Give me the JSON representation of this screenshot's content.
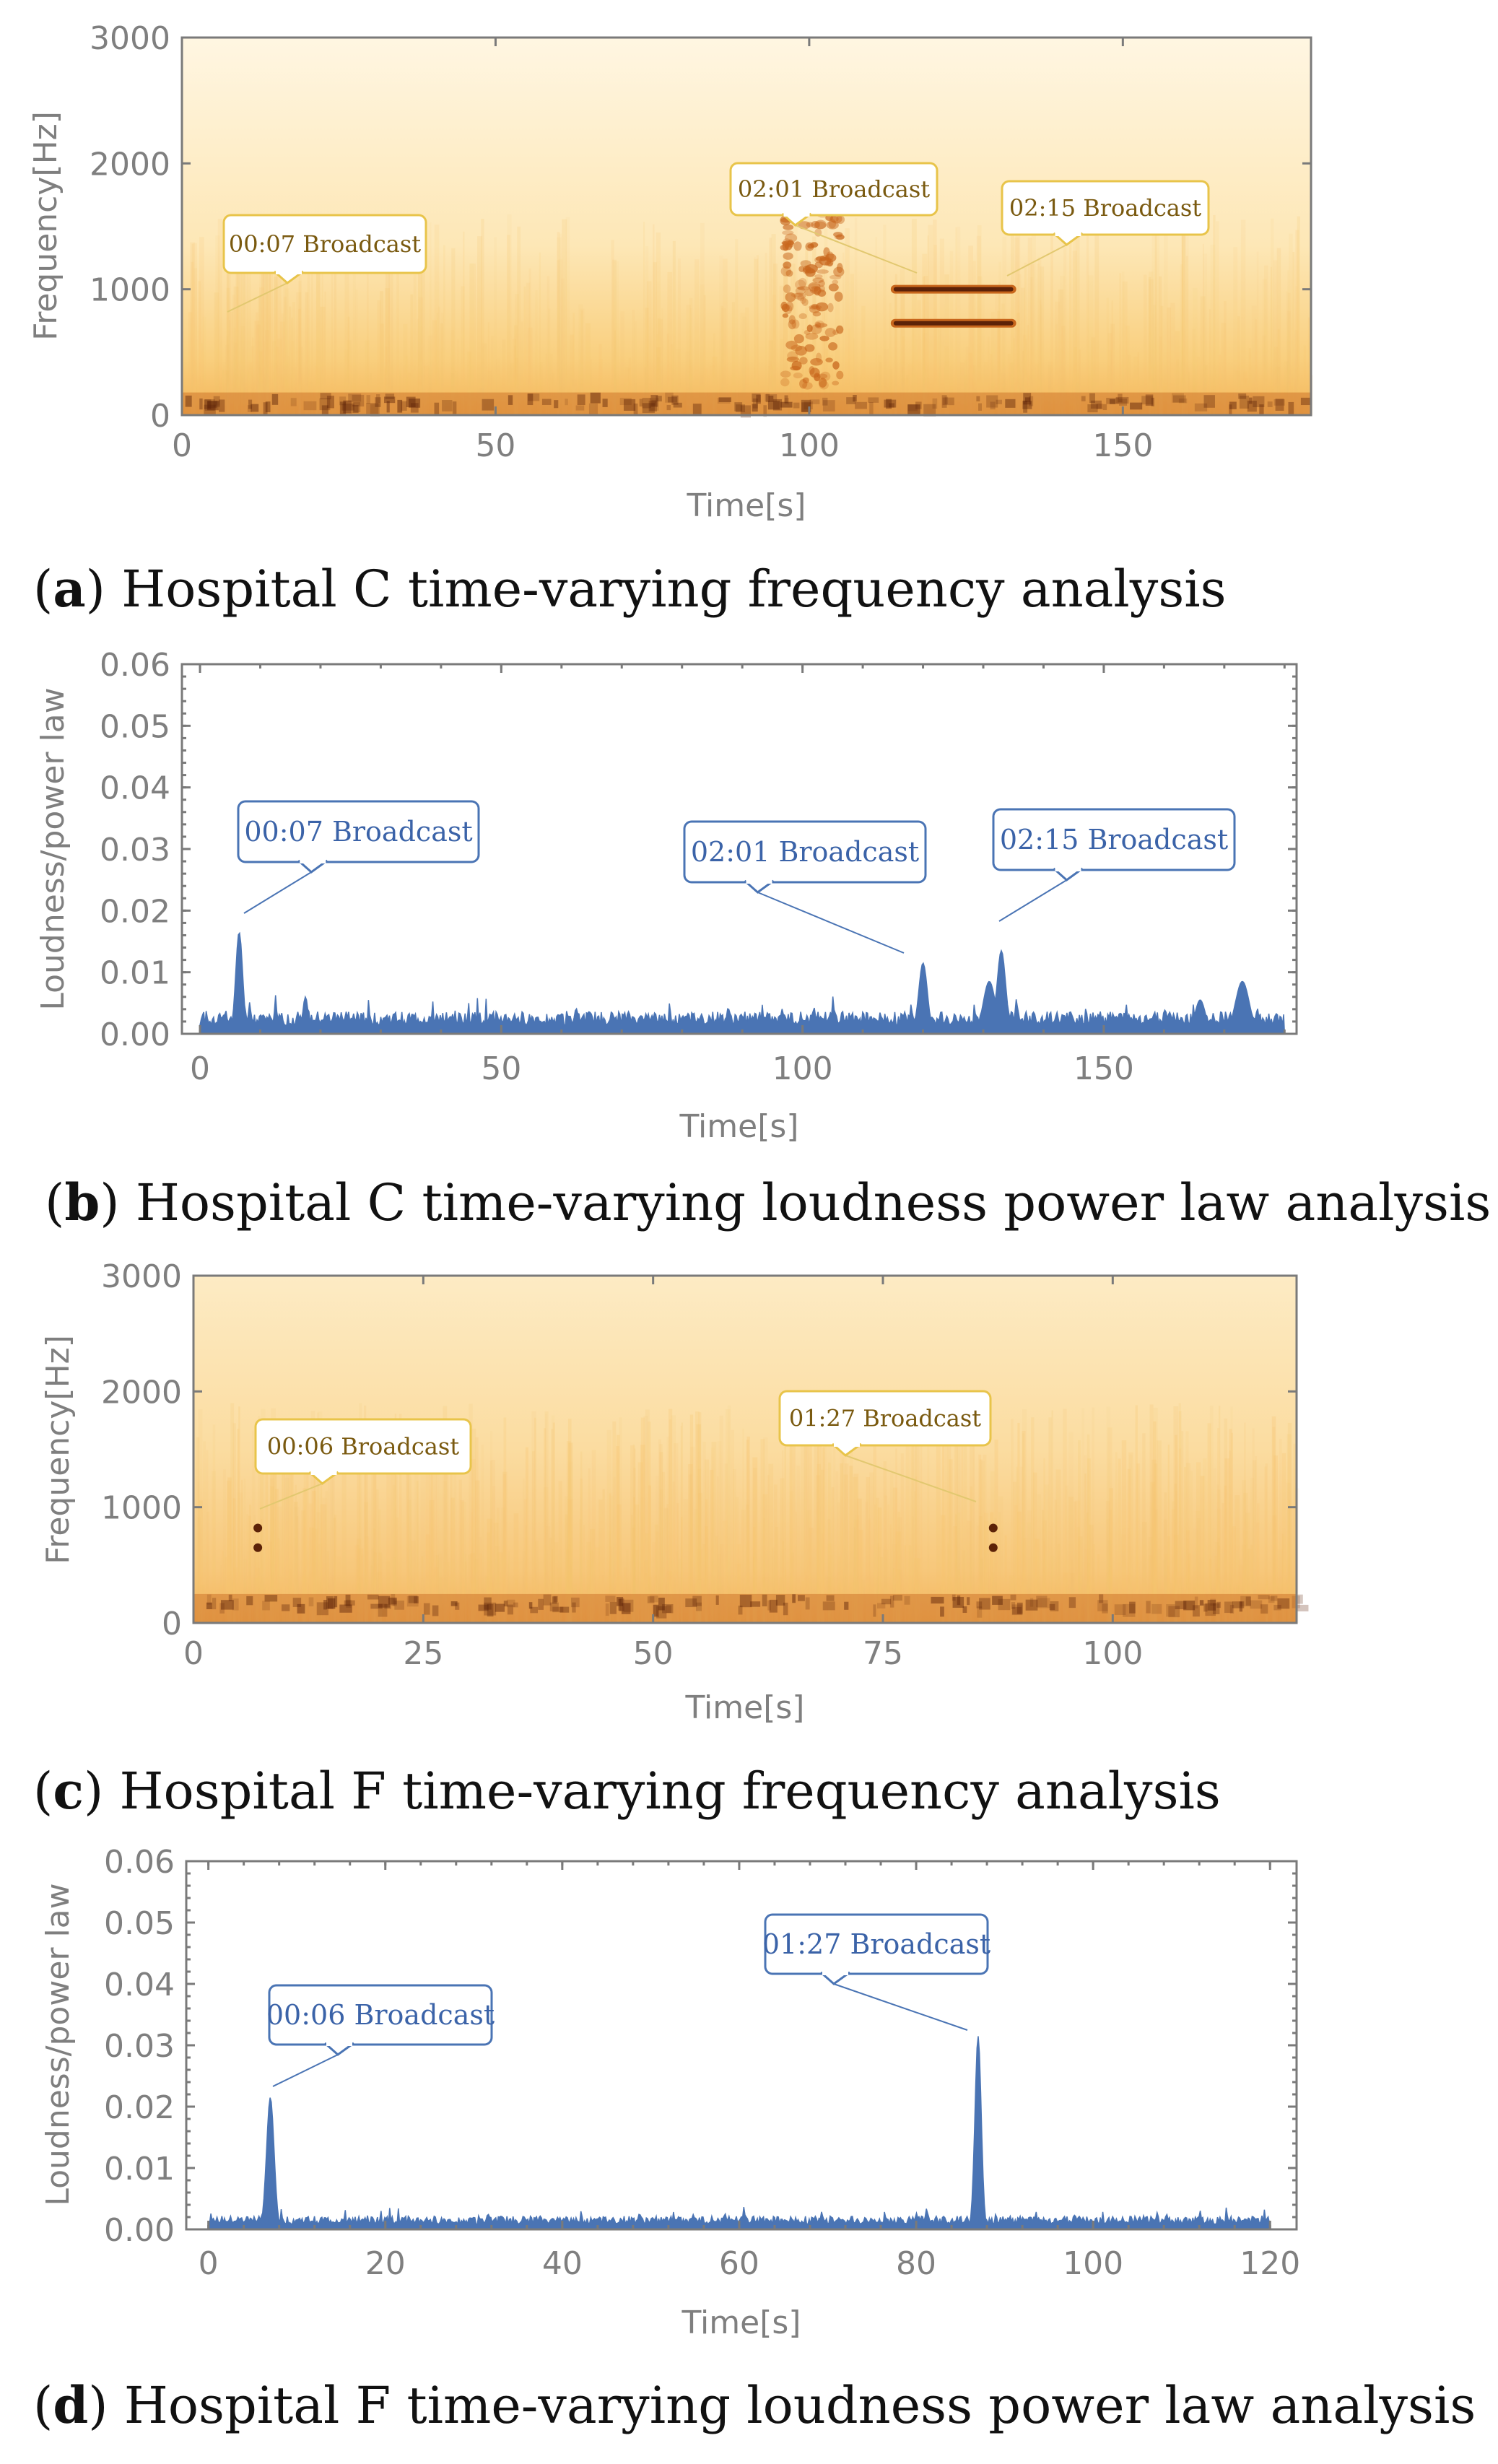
{
  "colors": {
    "series": "#4a74b4",
    "callout_gold_border": "#e8c44a",
    "callout_gold_leader": "#e2c870",
    "callout_blue_border": "#4a74b4",
    "spectrogram_low": "#fff5dc",
    "spectrogram_mid": "#f6c46e",
    "spectrogram_high": "#c8661c",
    "spectrogram_peak": "#5c2208"
  },
  "chart_data": [
    {
      "id": "a",
      "type": "heatmap",
      "caption_letter": "a",
      "caption_text": " Hospital C time-varying frequency analysis",
      "xlabel": "Time[s]",
      "ylabel": "Frequency[Hz]",
      "xlim": [
        0,
        180
      ],
      "ylim": [
        0,
        3000
      ],
      "xticks": [
        0,
        50,
        100,
        150
      ],
      "xtick_labels": [
        "0",
        "50",
        "100",
        "150"
      ],
      "yticks": [
        0,
        1000,
        2000,
        3000
      ],
      "ytick_labels": [
        "0",
        "1000",
        "2000",
        "3000"
      ],
      "features": [
        {
          "kind": "band",
          "t0": 0,
          "t1": 180,
          "f0": 0,
          "f1": 180,
          "intensity": 0.9
        },
        {
          "kind": "tonal",
          "t0": 113,
          "t1": 133,
          "f": 1000,
          "intensity": 1.0
        },
        {
          "kind": "tonal",
          "t0": 113,
          "t1": 133,
          "f": 730,
          "intensity": 1.0
        },
        {
          "kind": "burst",
          "t0": 96,
          "t1": 105,
          "f0": 200,
          "f1": 1600,
          "intensity": 0.7
        }
      ],
      "annotations": [
        {
          "label": "00:07 Broadcast",
          "t": 7,
          "value": 800
        },
        {
          "label": "02:01 Broadcast",
          "t": 118,
          "value": 1100
        },
        {
          "label": "02:15 Broadcast",
          "t": 131,
          "value": 1100
        }
      ]
    },
    {
      "id": "b",
      "type": "area",
      "caption_letter": "b",
      "caption_text": " Hospital C time-varying loudness power law analysis",
      "xlabel": "Time[s]",
      "ylabel": "Loudness/power law",
      "xlim": [
        -3,
        182
      ],
      "ylim": [
        0,
        0.06
      ],
      "xticks": [
        0,
        50,
        100,
        150
      ],
      "xtick_labels": [
        "0",
        "50",
        "100",
        "150"
      ],
      "yticks": [
        0,
        0.01,
        0.02,
        0.03,
        0.04,
        0.05,
        0.06
      ],
      "ytick_labels": [
        "0.00",
        "0.01",
        "0.02",
        "0.03",
        "0.04",
        "0.05",
        "0.06"
      ],
      "baseline_start": 0,
      "baseline_end": 180,
      "baseline_level": 0.0025,
      "peaks": [
        {
          "t": 6.5,
          "value": 0.0165,
          "width": 0.8
        },
        {
          "t": 17.5,
          "value": 0.006,
          "width": 0.6
        },
        {
          "t": 120,
          "value": 0.0115,
          "width": 1.0
        },
        {
          "t": 131,
          "value": 0.0085,
          "width": 1.4
        },
        {
          "t": 133,
          "value": 0.0135,
          "width": 1.0
        },
        {
          "t": 166,
          "value": 0.0055,
          "width": 1.2
        },
        {
          "t": 173,
          "value": 0.0085,
          "width": 1.6
        }
      ],
      "annotations": [
        {
          "label": "00:07 Broadcast",
          "t": 7,
          "value": 0.017
        },
        {
          "label": "02:01 Broadcast",
          "t": 121,
          "value": 0.0135
        },
        {
          "label": "02:15 Broadcast",
          "t": 133,
          "value": 0.018
        }
      ]
    },
    {
      "id": "c",
      "type": "heatmap",
      "caption_letter": "c",
      "caption_text": " Hospital F time-varying frequency analysis",
      "xlabel": "Time[s]",
      "ylabel": "Frequency[Hz]",
      "xlim": [
        0,
        120
      ],
      "ylim": [
        0,
        3000
      ],
      "xticks": [
        0,
        25,
        50,
        75,
        100
      ],
      "xtick_labels": [
        "0",
        "25",
        "50",
        "75",
        "100"
      ],
      "yticks": [
        0,
        1000,
        2000,
        3000
      ],
      "ytick_labels": [
        "0",
        "1000",
        "2000",
        "3000"
      ],
      "features": [
        {
          "kind": "band",
          "t0": 0,
          "t1": 120,
          "f0": 0,
          "f1": 250,
          "intensity": 0.8
        },
        {
          "kind": "dot",
          "t": 7,
          "f": 820,
          "intensity": 1.0
        },
        {
          "kind": "dot",
          "t": 7,
          "f": 650,
          "intensity": 1.0
        },
        {
          "kind": "dot",
          "t": 87,
          "f": 820,
          "intensity": 1.0
        },
        {
          "kind": "dot",
          "t": 87,
          "f": 650,
          "intensity": 1.0
        }
      ],
      "annotations": [
        {
          "label": "00:06 Broadcast",
          "t": 6,
          "value": 1000
        },
        {
          "label": "01:27 Broadcast",
          "t": 87,
          "value": 1100
        }
      ]
    },
    {
      "id": "d",
      "type": "area",
      "caption_letter": "d",
      "caption_text": " Hospital F time-varying loudness power law analysis",
      "xlabel": "Time[s]",
      "ylabel": "Loudness/power law",
      "xlim": [
        -2.5,
        123
      ],
      "ylim": [
        0,
        0.06
      ],
      "xticks": [
        0,
        20,
        40,
        60,
        80,
        100,
        120
      ],
      "xtick_labels": [
        "0",
        "20",
        "40",
        "60",
        "80",
        "100",
        "120"
      ],
      "yticks": [
        0,
        0.01,
        0.02,
        0.03,
        0.04,
        0.05,
        0.06
      ],
      "ytick_labels": [
        "0.00",
        "0.01",
        "0.02",
        "0.03",
        "0.04",
        "0.05",
        "0.06"
      ],
      "baseline_start": 0,
      "baseline_end": 120,
      "baseline_level": 0.0015,
      "peaks": [
        {
          "t": 7,
          "value": 0.0215,
          "width": 0.6
        },
        {
          "t": 87,
          "value": 0.0315,
          "width": 0.5
        }
      ],
      "annotations": [
        {
          "label": "00:06 Broadcast",
          "t": 7,
          "value": 0.022
        },
        {
          "label": "01:27 Broadcast",
          "t": 87,
          "value": 0.031
        }
      ]
    }
  ]
}
